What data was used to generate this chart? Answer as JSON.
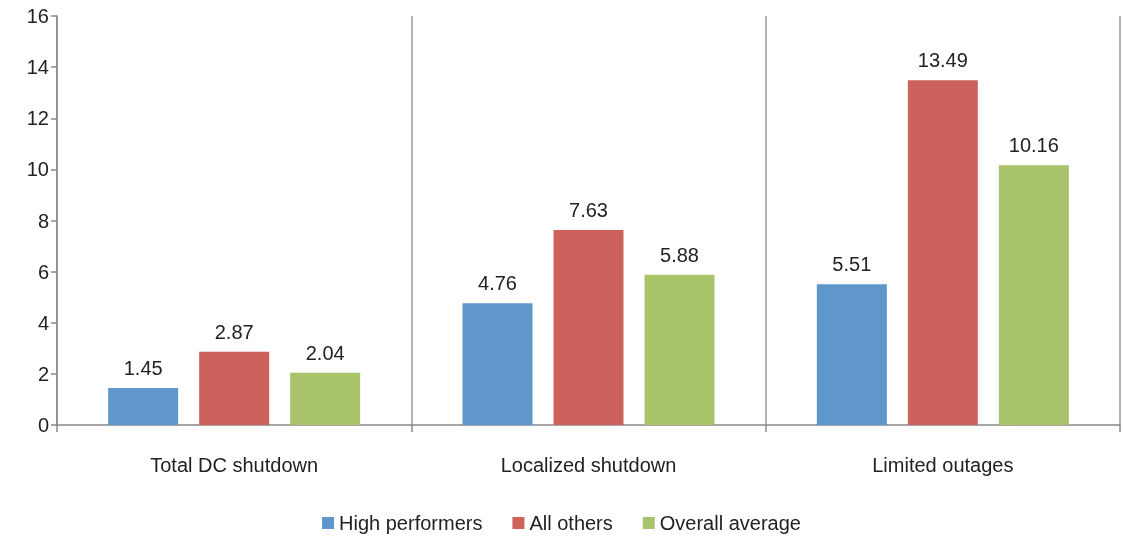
{
  "chart_data": {
    "type": "bar",
    "categories": [
      "Total DC shutdown",
      "Localized shutdown",
      "Limited outages"
    ],
    "series": [
      {
        "name": "High performers",
        "color": "#5f97cb",
        "values": [
          1.45,
          4.76,
          5.51
        ]
      },
      {
        "name": "All others",
        "color": "#cd625c",
        "values": [
          2.87,
          7.63,
          13.49
        ]
      },
      {
        "name": "Overall average",
        "color": "#a9c36a",
        "values": [
          2.04,
          5.88,
          10.16
        ]
      }
    ],
    "ylim": [
      0,
      16
    ],
    "yticks": [
      0,
      2,
      4,
      6,
      8,
      10,
      12,
      14,
      16
    ],
    "grid": "x",
    "legend": "bottom",
    "data_labels": true
  }
}
